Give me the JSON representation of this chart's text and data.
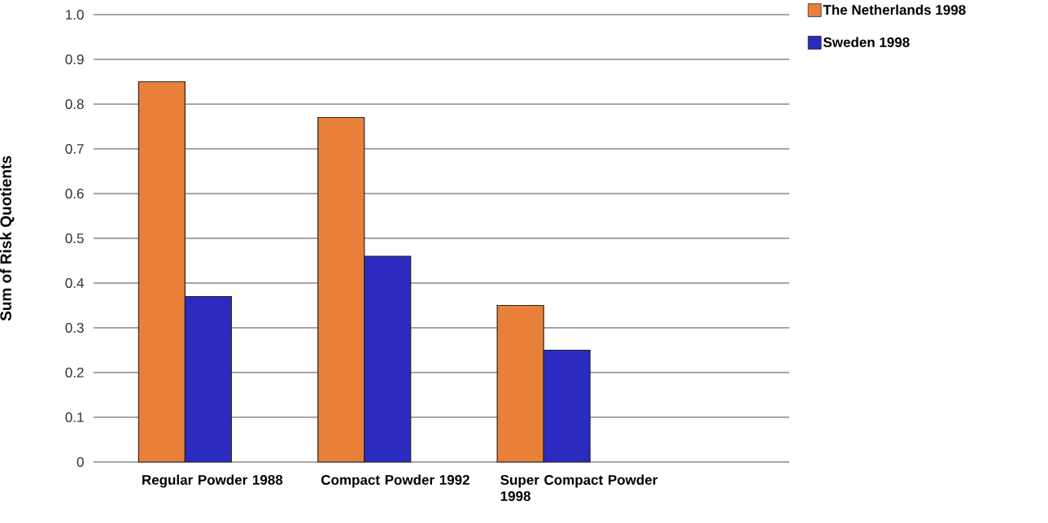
{
  "chart_data": {
    "type": "bar",
    "ylabel": "Sum of Risk Quotients",
    "categories": [
      "Regular Powder 1988",
      "Compact Powder 1992",
      "Super Compact Powder 1998"
    ],
    "series": [
      {
        "name": "The Netherlands 1998",
        "color": "#e8803a",
        "values": [
          0.85,
          0.77,
          0.35
        ]
      },
      {
        "name": "Sweden 1998",
        "color": "#2b2bbf",
        "values": [
          0.37,
          0.46,
          0.25
        ]
      }
    ],
    "ylim": [
      0,
      1
    ],
    "yticks": [
      0,
      {
        "value": 0.1,
        "label": "0.1"
      },
      {
        "value": 0.2,
        "label": "0.2"
      },
      {
        "value": 0.3,
        "label": "0.3"
      },
      {
        "value": 0.4,
        "label": "0.4"
      },
      {
        "value": 0.5,
        "label": "0.5"
      },
      {
        "value": 0.6,
        "label": "0.6"
      },
      {
        "value": 0.7,
        "label": "0.7"
      },
      {
        "value": 0.8,
        "label": "0.8"
      },
      {
        "value": 0.9,
        "label": "0.9"
      },
      {
        "value": 1,
        "label": "1.0"
      }
    ],
    "grid": "y",
    "legend": "top right"
  }
}
